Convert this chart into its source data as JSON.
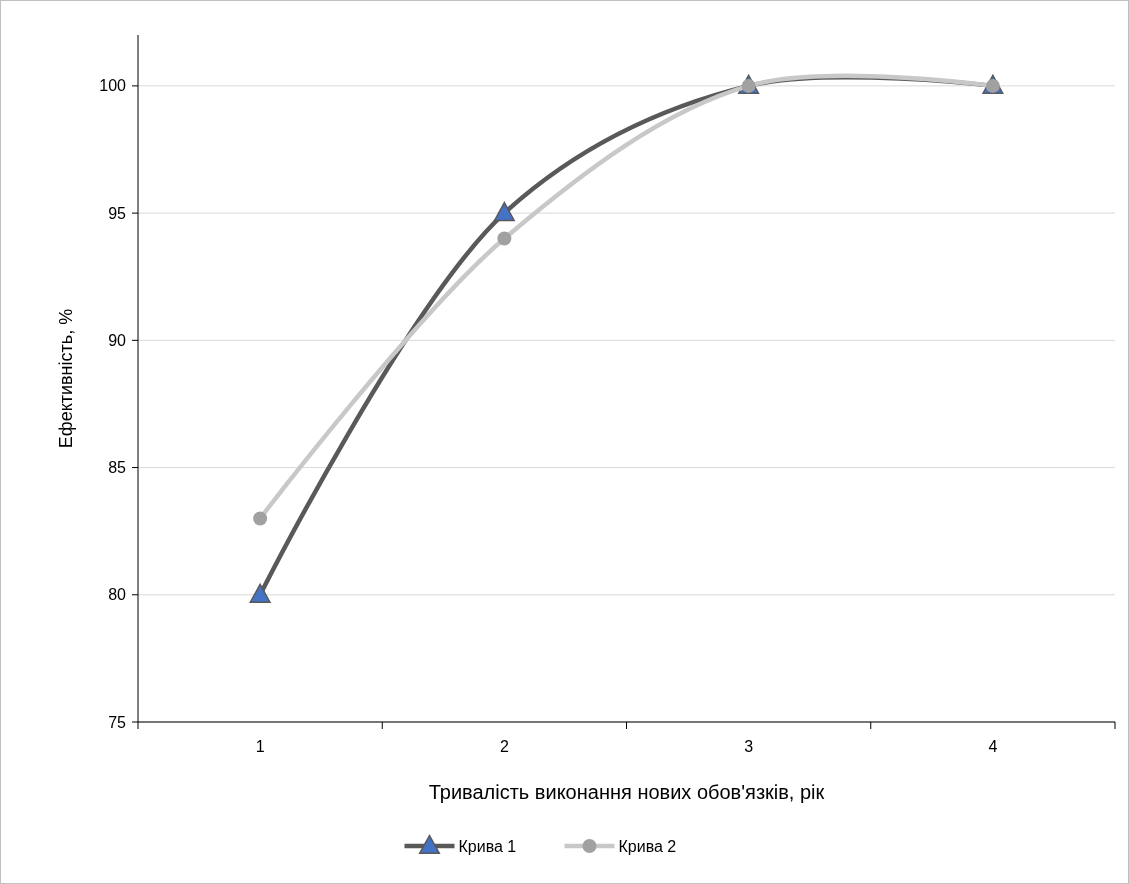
{
  "chart_data": {
    "type": "line",
    "xlabel": "Тривалість виконання нових обов'язків, рік",
    "ylabel": "Ефективність, %",
    "categories": [
      "1",
      "2",
      "3",
      "4"
    ],
    "series": [
      {
        "name": "Крива 1",
        "color": "#595959",
        "marker": "triangle",
        "values": [
          80,
          95,
          100,
          100
        ]
      },
      {
        "name": "Крива 2",
        "color": "#c8c8c8",
        "marker": "circle",
        "values": [
          83,
          94,
          100,
          100
        ]
      }
    ],
    "ylim": [
      75,
      102
    ],
    "yticks": [
      75,
      80,
      85,
      90,
      95,
      100
    ],
    "grid": "y",
    "legend": "bottom"
  }
}
